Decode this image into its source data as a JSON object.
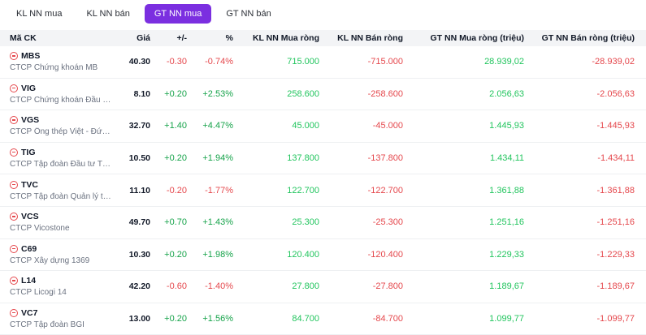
{
  "tabs": [
    {
      "label": "KL NN mua",
      "active": false
    },
    {
      "label": "KL NN bán",
      "active": false
    },
    {
      "label": "GT NN mua",
      "active": true
    },
    {
      "label": "GT NN bán",
      "active": false
    }
  ],
  "columns": {
    "code": "Mã CK",
    "price": "Giá",
    "change": "+/-",
    "pct": "%",
    "kl_buy": "KL NN Mua ròng",
    "kl_sell": "KL NN Bán ròng",
    "gt_buy": "GT NN Mua ròng (triệu)",
    "gt_sell": "GT NN Bán ròng (triệu)"
  },
  "colors": {
    "accent": "#7b2fe0",
    "up": "#16a34a",
    "down": "#e5484d"
  },
  "rows": [
    {
      "code": "MBS",
      "company": "CTCP Chứng khoán MB",
      "price": "40.30",
      "change": "-0.30",
      "pct": "-0.74%",
      "dir": "down",
      "kl_buy": "715.000",
      "kl_sell": "-715.000",
      "gt_buy": "28.939,02",
      "gt_sell": "-28.939,02"
    },
    {
      "code": "VIG",
      "company": "CTCP Chứng khoán Đầu tư ...",
      "price": "8.10",
      "change": "+0.20",
      "pct": "+2.53%",
      "dir": "up",
      "kl_buy": "258.600",
      "kl_sell": "-258.600",
      "gt_buy": "2.056,63",
      "gt_sell": "-2.056,63"
    },
    {
      "code": "VGS",
      "company": "CTCP Ống thép Việt - Đức ...",
      "price": "32.70",
      "change": "+1.40",
      "pct": "+4.47%",
      "dir": "up",
      "kl_buy": "45.000",
      "kl_sell": "-45.000",
      "gt_buy": "1.445,93",
      "gt_sell": "-1.445,93"
    },
    {
      "code": "TIG",
      "company": "CTCP Tập đoàn Đầu tư Thă...",
      "price": "10.50",
      "change": "+0.20",
      "pct": "+1.94%",
      "dir": "up",
      "kl_buy": "137.800",
      "kl_sell": "-137.800",
      "gt_buy": "1.434,11",
      "gt_sell": "-1.434,11"
    },
    {
      "code": "TVC",
      "company": "CTCP Tập đoàn Quản lý tài ...",
      "price": "11.10",
      "change": "-0.20",
      "pct": "-1.77%",
      "dir": "down",
      "kl_buy": "122.700",
      "kl_sell": "-122.700",
      "gt_buy": "1.361,88",
      "gt_sell": "-1.361,88"
    },
    {
      "code": "VCS",
      "company": "CTCP Vicostone",
      "price": "49.70",
      "change": "+0.70",
      "pct": "+1.43%",
      "dir": "up",
      "kl_buy": "25.300",
      "kl_sell": "-25.300",
      "gt_buy": "1.251,16",
      "gt_sell": "-1.251,16"
    },
    {
      "code": "C69",
      "company": "CTCP Xây dựng 1369",
      "price": "10.30",
      "change": "+0.20",
      "pct": "+1.98%",
      "dir": "up",
      "kl_buy": "120.400",
      "kl_sell": "-120.400",
      "gt_buy": "1.229,33",
      "gt_sell": "-1.229,33"
    },
    {
      "code": "L14",
      "company": "CTCP Licogi 14",
      "price": "42.20",
      "change": "-0.60",
      "pct": "-1.40%",
      "dir": "down",
      "kl_buy": "27.800",
      "kl_sell": "-27.800",
      "gt_buy": "1.189,67",
      "gt_sell": "-1.189,67"
    },
    {
      "code": "VC7",
      "company": "CTCP Tập đoàn BGI",
      "price": "13.00",
      "change": "+0.20",
      "pct": "+1.56%",
      "dir": "up",
      "kl_buy": "84.700",
      "kl_sell": "-84.700",
      "gt_buy": "1.099,77",
      "gt_sell": "-1.099,77"
    }
  ]
}
